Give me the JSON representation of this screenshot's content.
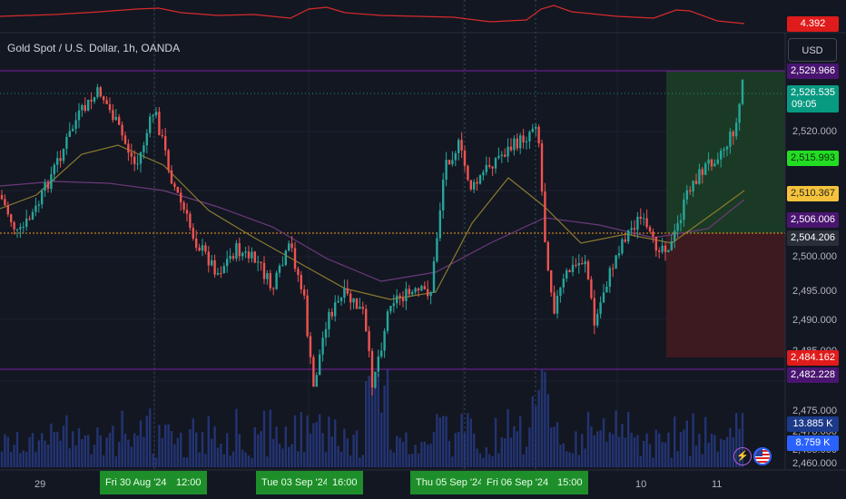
{
  "symbol_title": "Gold Spot / U.S. Dollar, 1h, OANDA",
  "currency_label": "USD",
  "indicator_value": "4.392",
  "y_axis_ticks": [
    "2,520.000",
    "2,500.000",
    "2,495.000",
    "2,490.000",
    "2,485.000",
    "2,475.000",
    "2,470.000",
    "2,465.000",
    "2,460.000"
  ],
  "price_tags": [
    {
      "text": "2,529.966",
      "bg": "#4a1570",
      "fg": "#ffffff"
    },
    {
      "text": "2,526.535",
      "sub": "09:05",
      "bg": "#089981",
      "fg": "#ffffff"
    },
    {
      "text": "2,515.993",
      "bg": "#22dd22",
      "fg": "#0b2a0b"
    },
    {
      "text": "2,510.367",
      "bg": "#f5c33b",
      "fg": "#222222"
    },
    {
      "text": "2,506.006",
      "bg": "#4a1570",
      "fg": "#ffffff"
    },
    {
      "text": "2,504.206",
      "bg": "#2a2e39",
      "fg": "#ffffff"
    },
    {
      "text": "2,484.162",
      "bg": "#e01b1b",
      "fg": "#ffffff"
    },
    {
      "text": "2,482.228",
      "bg": "#4a1570",
      "fg": "#ffffff"
    },
    {
      "text": "13.885 K",
      "bg": "#1c3a8a",
      "fg": "#ffffff"
    },
    {
      "text": "8.759 K",
      "bg": "#2962ff",
      "fg": "#ffffff"
    }
  ],
  "x_axis_labels": [
    "29",
    "10",
    "11"
  ],
  "x_axis_highlights": [
    "Fri 30 Aug '24",
    "12:00",
    "Tue 03 Sep '24",
    "16:00",
    "Thu 05 Sep '24",
    "Fri 06 Sep '24",
    "15:00"
  ],
  "icons": {
    "bolt": "lightning-icon",
    "flag": "us-flag-icon"
  },
  "colors": {
    "up": "#26a69a",
    "down": "#ef5350",
    "bg": "#131722",
    "purple_line": "#7b1fa2",
    "orange_line": "#f59c1a",
    "long_box": "#1b3a25",
    "short_box": "#3d1a20"
  }
}
